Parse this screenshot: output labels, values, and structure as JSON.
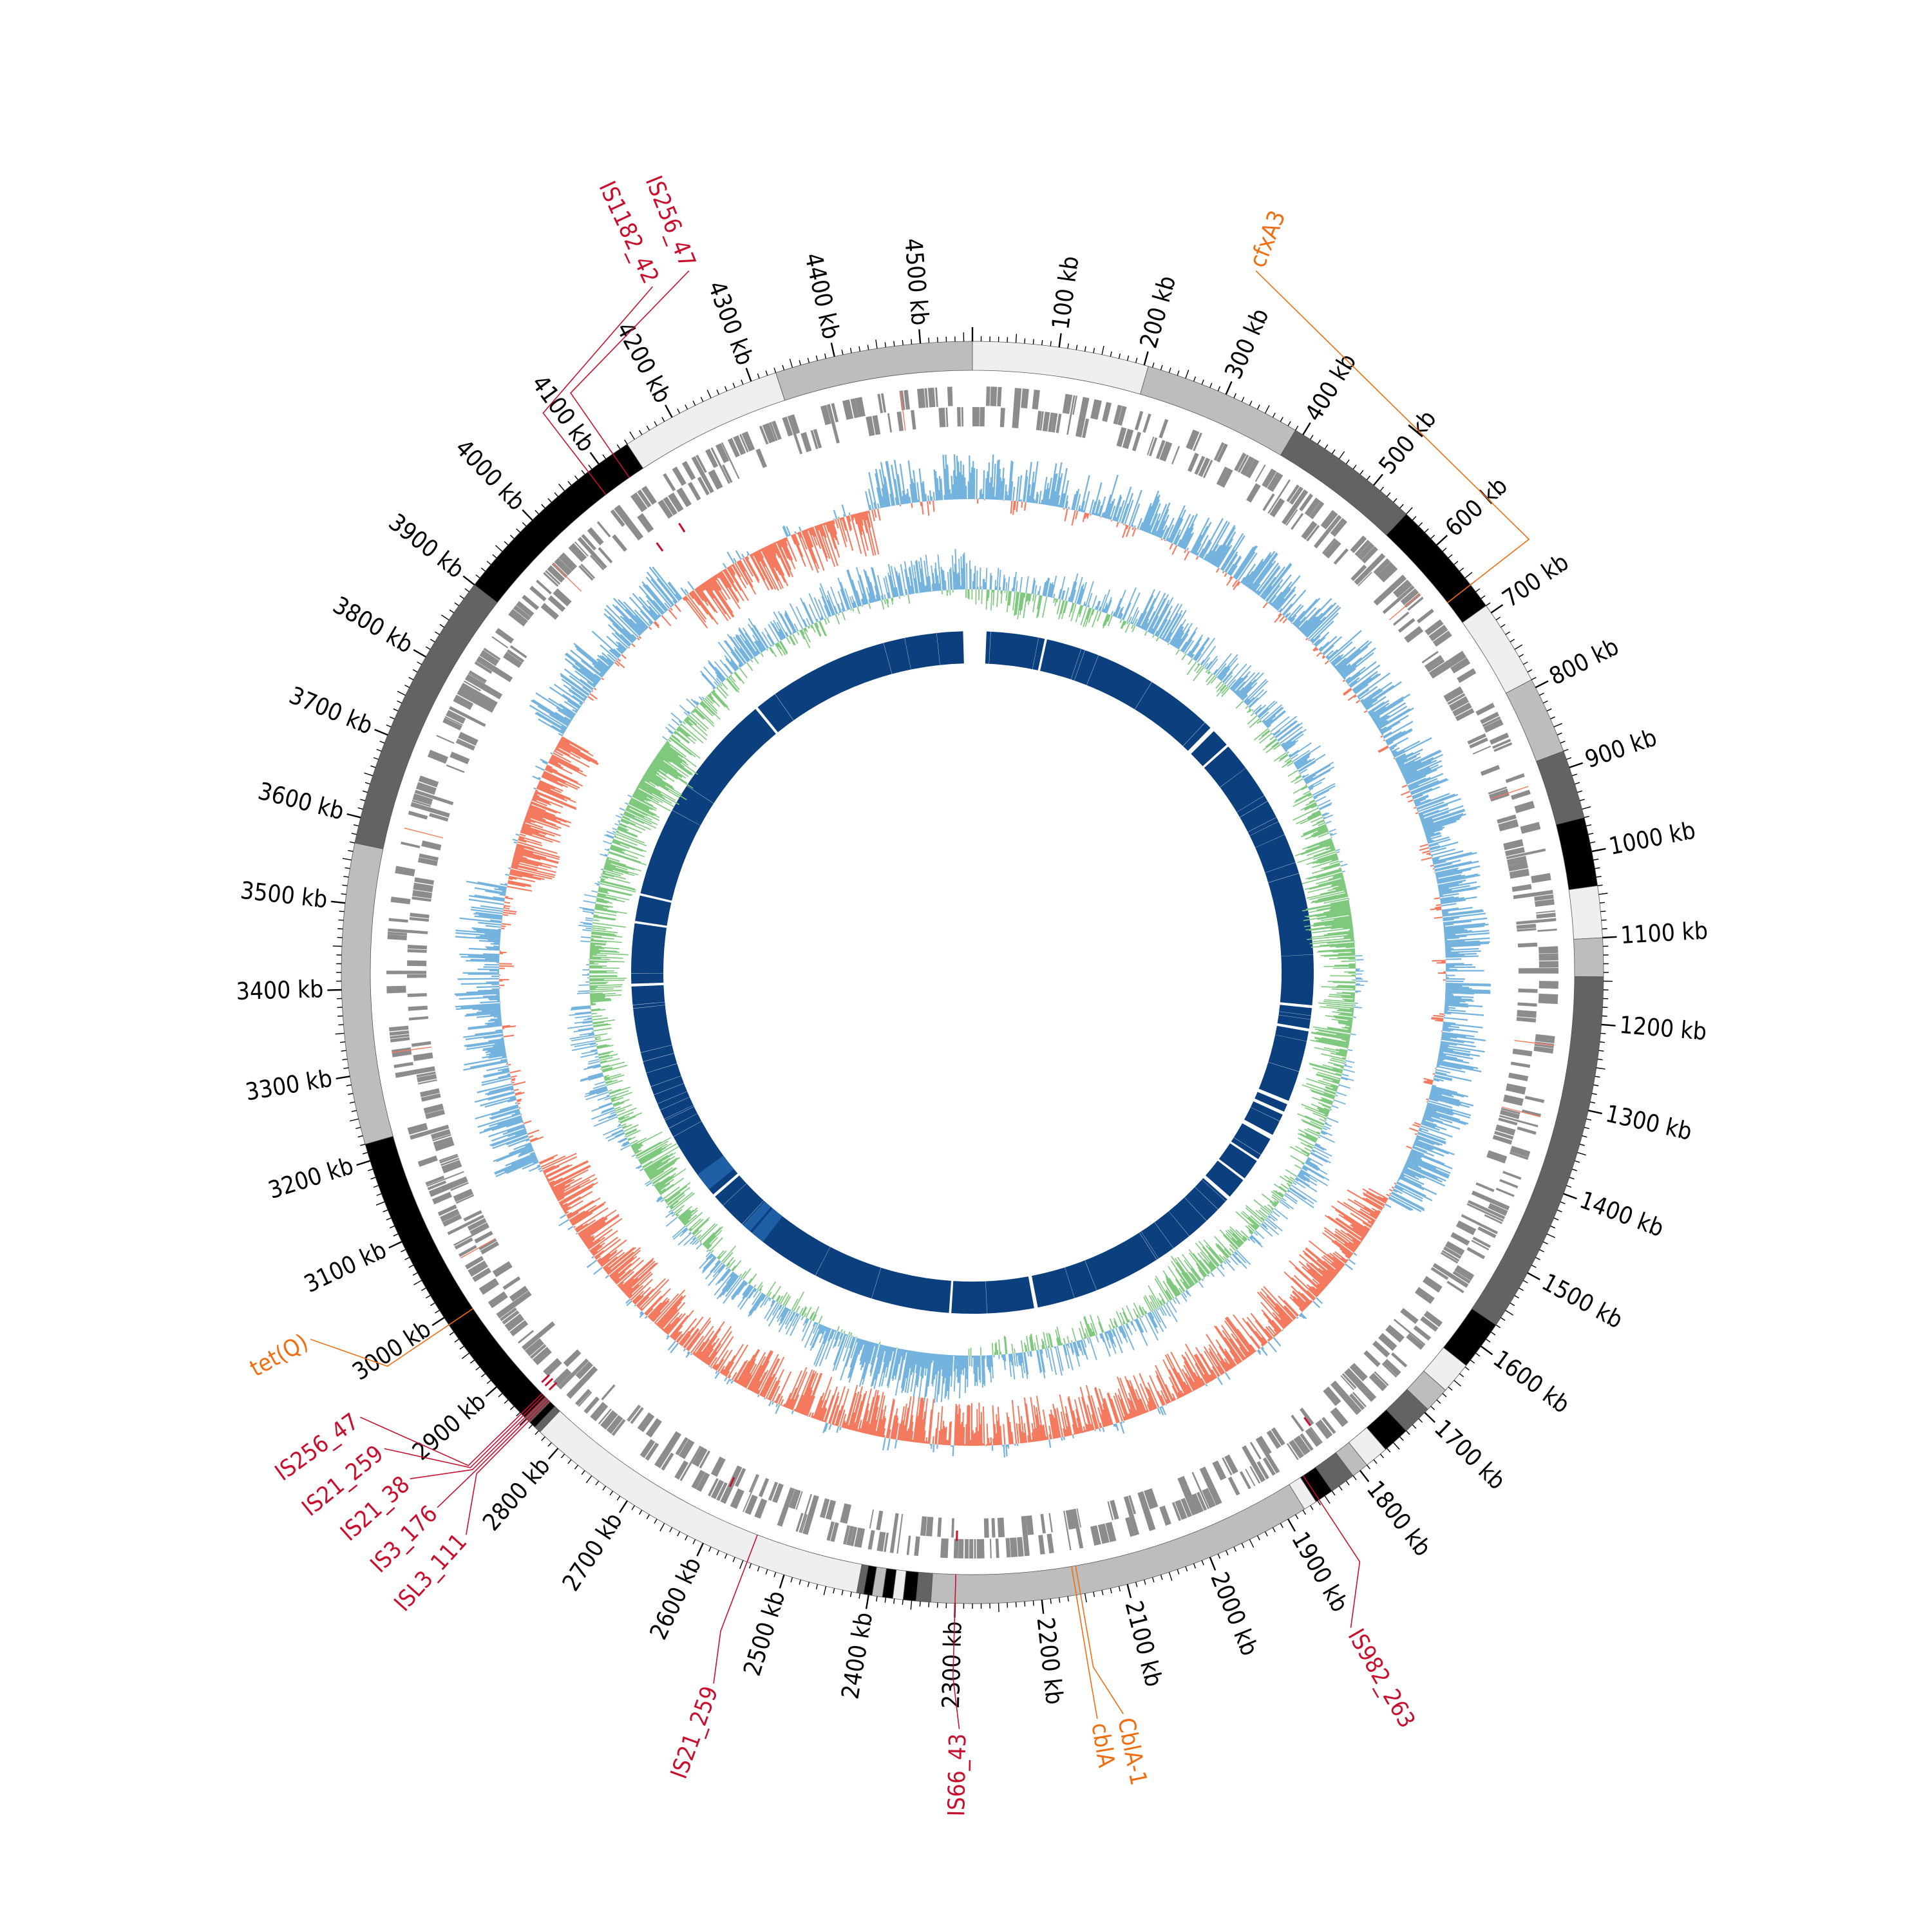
{
  "genome": {
    "length_kb": 4560,
    "unit": "kb"
  },
  "colors": {
    "gc_skew_positive": "#74b3de",
    "gc_skew_negative": "#f47a5f",
    "gc_content_positive": "#74b3de",
    "gc_content_negative": "#7fc97f",
    "feature_grey": "#8c8c8c",
    "synteny_blue": "#0b3f7e",
    "is_element": "#c8102e",
    "resistance_gene": "#f06d10"
  },
  "tick_labels": [
    {
      "pos": 100,
      "label": "100 kb"
    },
    {
      "pos": 200,
      "label": "200 kb"
    },
    {
      "pos": 300,
      "label": "300 kb"
    },
    {
      "pos": 400,
      "label": "400 kb"
    },
    {
      "pos": 500,
      "label": "500 kb"
    },
    {
      "pos": 600,
      "label": "600 kb"
    },
    {
      "pos": 700,
      "label": "700 kb"
    },
    {
      "pos": 800,
      "label": "800 kb"
    },
    {
      "pos": 900,
      "label": "900 kb"
    },
    {
      "pos": 1000,
      "label": "1000 kb"
    },
    {
      "pos": 1100,
      "label": "1100 kb"
    },
    {
      "pos": 1200,
      "label": "1200 kb"
    },
    {
      "pos": 1300,
      "label": "1300 kb"
    },
    {
      "pos": 1400,
      "label": "1400 kb"
    },
    {
      "pos": 1500,
      "label": "1500 kb"
    },
    {
      "pos": 1600,
      "label": "1600 kb"
    },
    {
      "pos": 1700,
      "label": "1700 kb"
    },
    {
      "pos": 1800,
      "label": "1800 kb"
    },
    {
      "pos": 1900,
      "label": "1900 kb"
    },
    {
      "pos": 2000,
      "label": "2000 kb"
    },
    {
      "pos": 2100,
      "label": "2100 kb"
    },
    {
      "pos": 2200,
      "label": "2200 kb"
    },
    {
      "pos": 2300,
      "label": "2300 kb"
    },
    {
      "pos": 2400,
      "label": "2400 kb"
    },
    {
      "pos": 2500,
      "label": "2500 kb"
    },
    {
      "pos": 2600,
      "label": "2600 kb"
    },
    {
      "pos": 2700,
      "label": "2700 kb"
    },
    {
      "pos": 2800,
      "label": "2800 kb"
    },
    {
      "pos": 2900,
      "label": "2900 kb"
    },
    {
      "pos": 3000,
      "label": "3000 kb"
    },
    {
      "pos": 3100,
      "label": "3100 kb"
    },
    {
      "pos": 3200,
      "label": "3200 kb"
    },
    {
      "pos": 3300,
      "label": "3300 kb"
    },
    {
      "pos": 3400,
      "label": "3400 kb"
    },
    {
      "pos": 3500,
      "label": "3500 kb"
    },
    {
      "pos": 3600,
      "label": "3600 kb"
    },
    {
      "pos": 3700,
      "label": "3700 kb"
    },
    {
      "pos": 3800,
      "label": "3800 kb"
    },
    {
      "pos": 3900,
      "label": "3900 kb"
    },
    {
      "pos": 4000,
      "label": "4000 kb"
    },
    {
      "pos": 4100,
      "label": "4100 kb"
    },
    {
      "pos": 4200,
      "label": "4200 kb"
    },
    {
      "pos": 4300,
      "label": "4300 kb"
    },
    {
      "pos": 4400,
      "label": "4400 kb"
    },
    {
      "pos": 4500,
      "label": "4500 kb"
    }
  ],
  "contigs": [
    {
      "start": 0,
      "end": 205,
      "shade": "#efefef"
    },
    {
      "start": 205,
      "end": 390,
      "shade": "#bdbdbd"
    },
    {
      "start": 390,
      "end": 550,
      "shade": "#636363"
    },
    {
      "start": 550,
      "end": 690,
      "shade": "#000000"
    },
    {
      "start": 690,
      "end": 790,
      "shade": "#efefef"
    },
    {
      "start": 790,
      "end": 880,
      "shade": "#bdbdbd"
    },
    {
      "start": 880,
      "end": 960,
      "shade": "#636363"
    },
    {
      "start": 960,
      "end": 1040,
      "shade": "#000000"
    },
    {
      "start": 1040,
      "end": 1100,
      "shade": "#efefef"
    },
    {
      "start": 1100,
      "end": 1145,
      "shade": "#bdbdbd"
    },
    {
      "start": 1145,
      "end": 1570,
      "shade": "#636363"
    },
    {
      "start": 1570,
      "end": 1628,
      "shade": "#000000"
    },
    {
      "start": 1628,
      "end": 1665,
      "shade": "#efefef"
    },
    {
      "start": 1665,
      "end": 1695,
      "shade": "#bdbdbd"
    },
    {
      "start": 1695,
      "end": 1730,
      "shade": "#636363"
    },
    {
      "start": 1730,
      "end": 1762,
      "shade": "#000000"
    },
    {
      "start": 1762,
      "end": 1790,
      "shade": "#efefef"
    },
    {
      "start": 1790,
      "end": 1810,
      "shade": "#bdbdbd"
    },
    {
      "start": 1810,
      "end": 1840,
      "shade": "#636363"
    },
    {
      "start": 1840,
      "end": 1862,
      "shade": "#000000"
    },
    {
      "start": 1862,
      "end": 1878,
      "shade": "#efefef"
    },
    {
      "start": 1878,
      "end": 2328,
      "shade": "#bdbdbd"
    },
    {
      "start": 2328,
      "end": 2345,
      "shade": "#636363"
    },
    {
      "start": 2345,
      "end": 2360,
      "shade": "#000000"
    },
    {
      "start": 2360,
      "end": 2372,
      "shade": "#efefef"
    },
    {
      "start": 2372,
      "end": 2384,
      "shade": "#000000"
    },
    {
      "start": 2384,
      "end": 2396,
      "shade": "#bdbdbd"
    },
    {
      "start": 2396,
      "end": 2406,
      "shade": "#000000"
    },
    {
      "start": 2406,
      "end": 2414,
      "shade": "#636363"
    },
    {
      "start": 2414,
      "end": 2828,
      "shade": "#efefef"
    },
    {
      "start": 2828,
      "end": 2836,
      "shade": "#636363"
    },
    {
      "start": 2836,
      "end": 2844,
      "shade": "#000000"
    },
    {
      "start": 2844,
      "end": 2852,
      "shade": "#636363"
    },
    {
      "start": 2852,
      "end": 3220,
      "shade": "#000000"
    },
    {
      "start": 3220,
      "end": 3570,
      "shade": "#bdbdbd"
    },
    {
      "start": 3570,
      "end": 3900,
      "shade": "#636363"
    },
    {
      "start": 3900,
      "end": 4140,
      "shade": "#000000"
    },
    {
      "start": 4140,
      "end": 4330,
      "shade": "#efefef"
    },
    {
      "start": 4330,
      "end": 4560,
      "shade": "#bdbdbd"
    }
  ],
  "synteny_blocks": [
    [
      30,
      155
    ],
    [
      160,
      560
    ],
    [
      570,
      610
    ],
    [
      615,
      1210
    ],
    [
      1216,
      1260
    ],
    [
      1266,
      1420
    ],
    [
      1428,
      1445
    ],
    [
      1452,
      1500
    ],
    [
      1510,
      1560
    ],
    [
      1565,
      1610
    ],
    [
      1615,
      1660
    ],
    [
      1668,
      2140
    ],
    [
      2148,
      2325
    ],
    [
      2330,
      2900
    ],
    [
      2906,
      3390
    ],
    [
      3396,
      3525
    ],
    [
      3530,
      3585
    ],
    [
      3590,
      4060
    ],
    [
      4066,
      4540
    ]
  ],
  "gene_annotations": [
    {
      "pos": 660,
      "label": "cfxA3",
      "kind": "resistance",
      "label_angle": 22
    },
    {
      "pos": 1858,
      "label": "IS982_263",
      "kind": "is",
      "label_angle": 150
    },
    {
      "pos": 2155,
      "label": "CblA-1",
      "kind": "resistance",
      "label_angle": 168.5
    },
    {
      "pos": 2160,
      "label": "cblA",
      "kind": "resistance",
      "label_angle": 170.5
    },
    {
      "pos": 2300,
      "label": "IS66_43",
      "kind": "is",
      "label_angle": 181
    },
    {
      "pos": 2545,
      "label": "IS21_259",
      "kind": "is",
      "label_angle": 200
    },
    {
      "pos": 2846,
      "label": "ISL3_111",
      "kind": "is",
      "label_angle": 222
    },
    {
      "pos": 2849,
      "label": "IS3_176",
      "kind": "is",
      "label_angle": 225
    },
    {
      "pos": 2852,
      "label": "IS21_38",
      "kind": "is",
      "label_angle": 228
    },
    {
      "pos": 2855,
      "label": "IS21_259",
      "kind": "is",
      "label_angle": 231
    },
    {
      "pos": 2858,
      "label": "IS256_47",
      "kind": "is",
      "label_angle": 234
    },
    {
      "pos": 2990,
      "label": "tet(Q)",
      "kind": "resistance",
      "label_angle": 241
    },
    {
      "pos": 4085,
      "label": "IS1182_42",
      "kind": "is",
      "label_angle": 335
    },
    {
      "pos": 4120,
      "label": "IS256_47",
      "kind": "is",
      "label_angle": 338
    }
  ]
}
